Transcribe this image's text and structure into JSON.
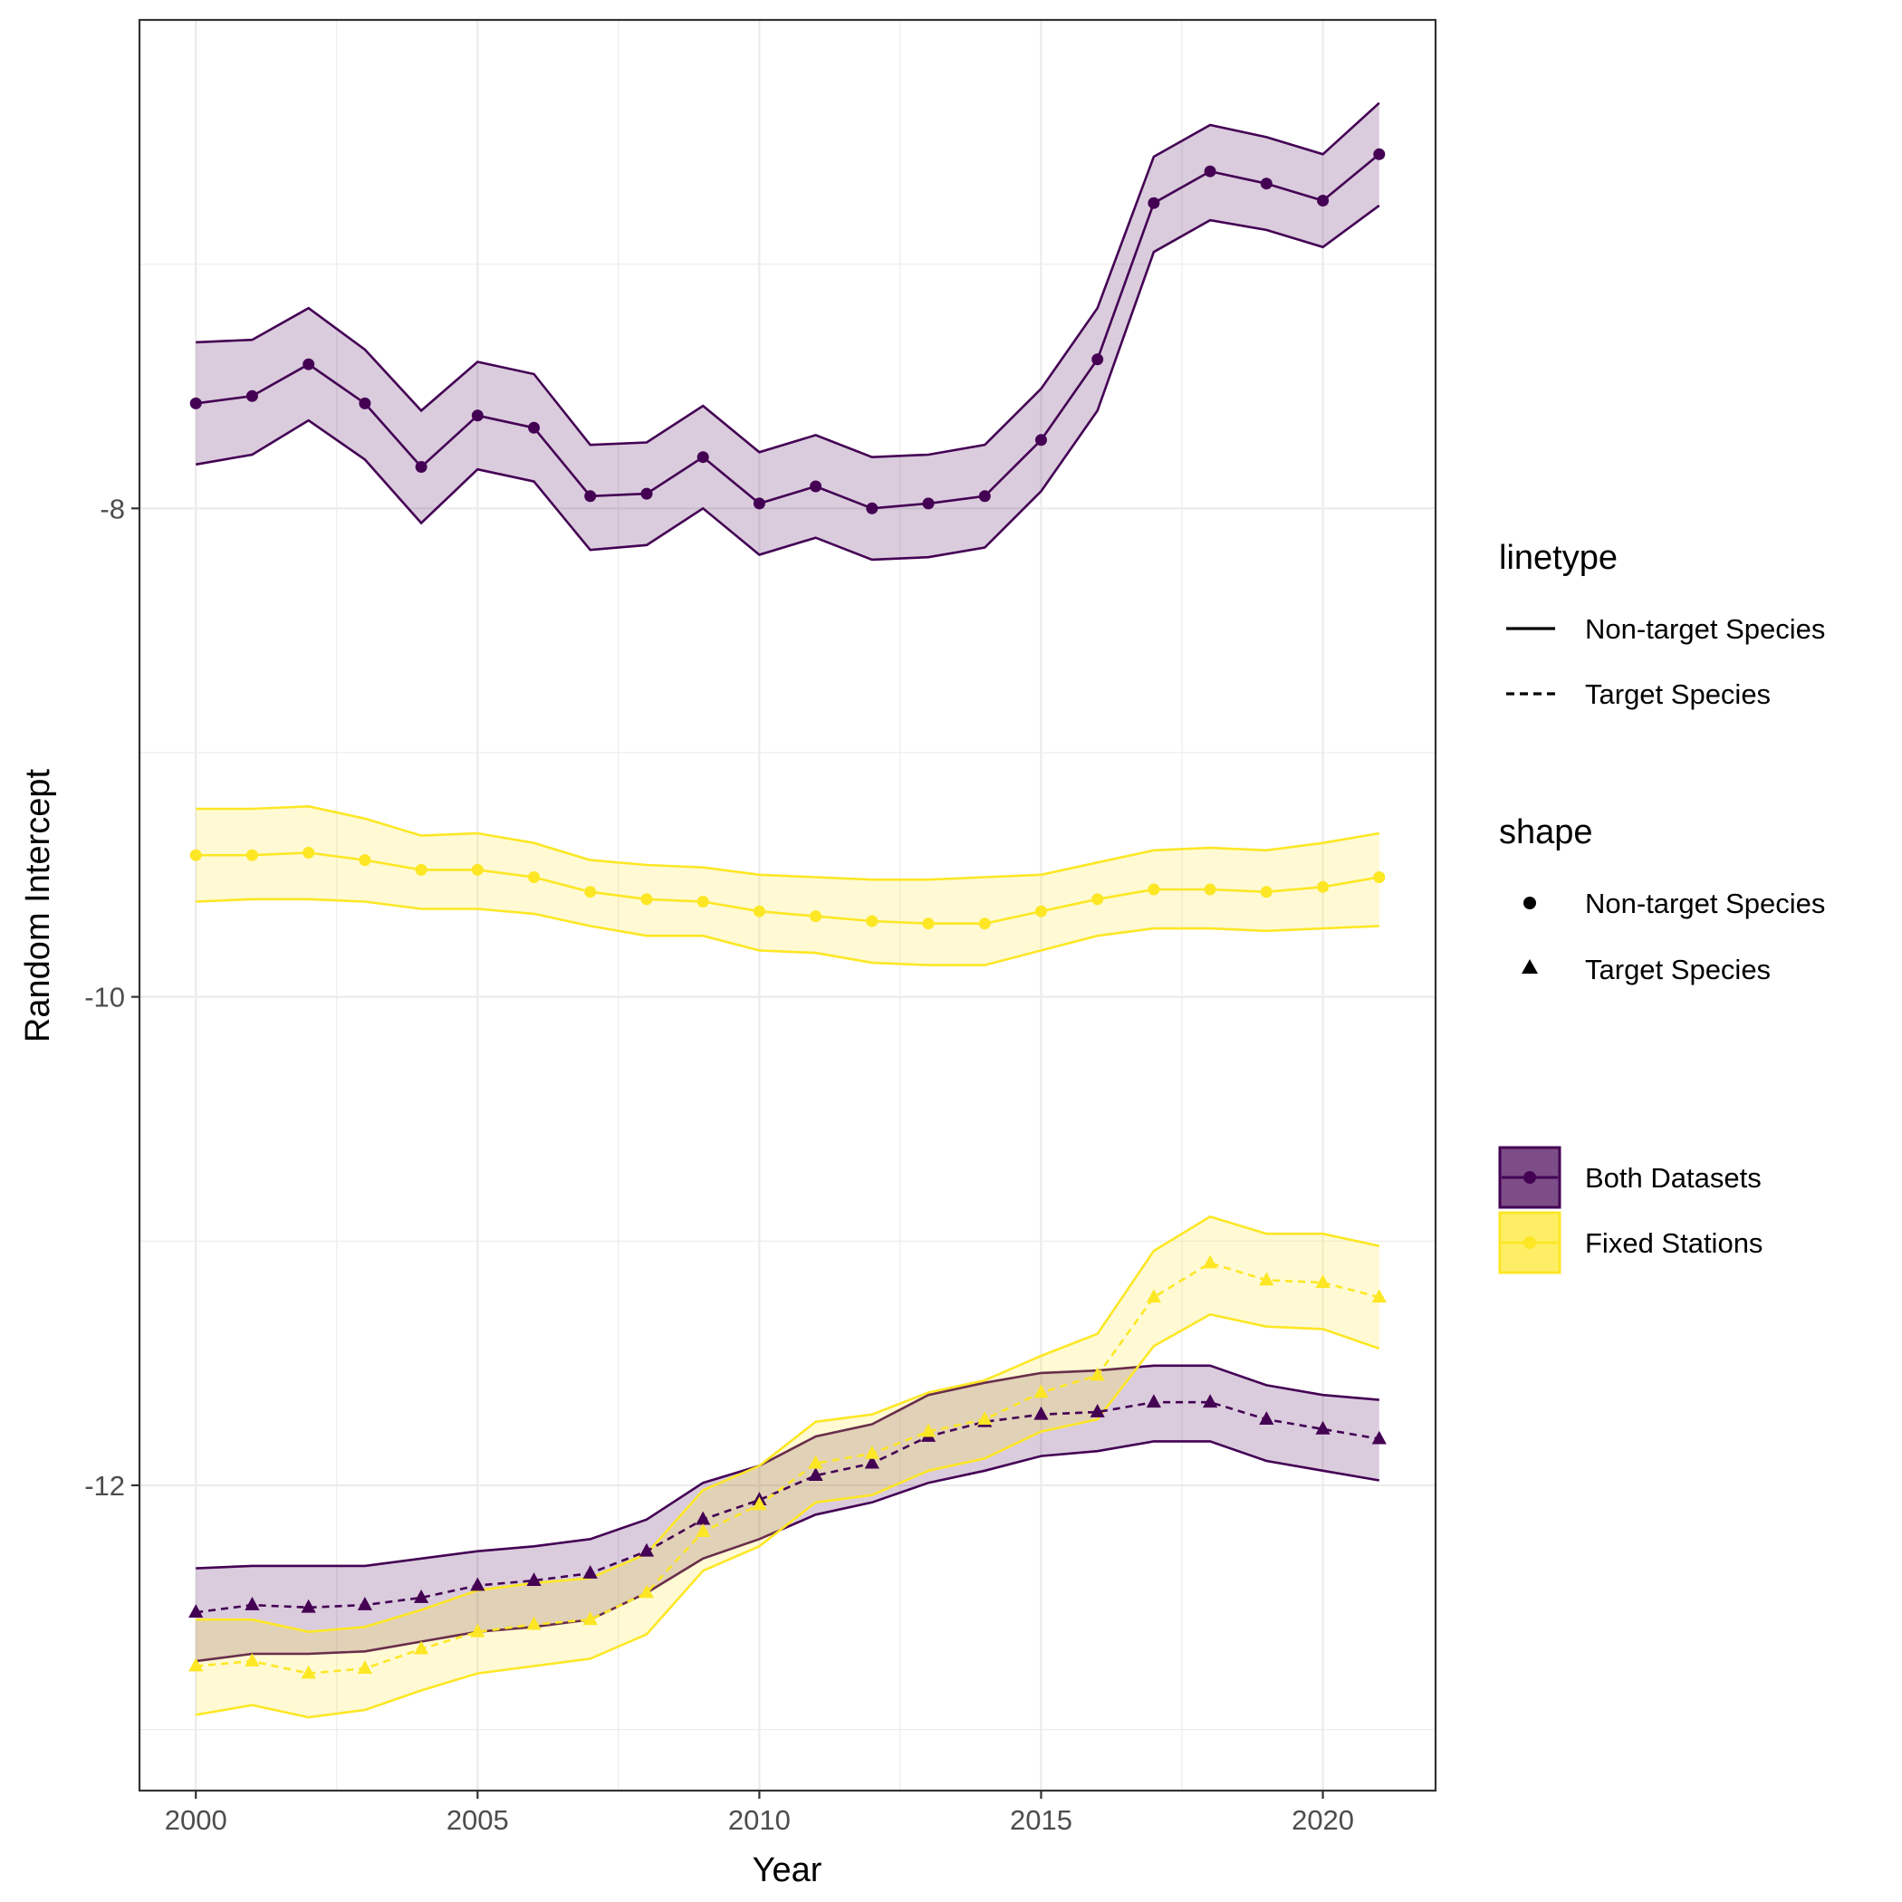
{
  "chart_data": {
    "type": "line",
    "xlabel": "Year",
    "ylabel": "Random Intercept",
    "xlim": [
      1999.0,
      2022.0
    ],
    "ylim": [
      -13.25,
      -6.0
    ],
    "x_ticks": [
      2000,
      2005,
      2010,
      2015,
      2020
    ],
    "y_ticks": [
      -8,
      -10,
      -12
    ],
    "x_tick_labels": [
      "2000",
      "2005",
      "2010",
      "2015",
      "2020"
    ],
    "y_tick_labels": [
      "-8",
      "-10",
      "-12"
    ],
    "x": [
      2000,
      2001,
      2002,
      2003,
      2004,
      2005,
      2006,
      2007,
      2008,
      2009,
      2010,
      2011,
      2012,
      2013,
      2014,
      2015,
      2016,
      2017,
      2018,
      2019,
      2020,
      2021
    ],
    "grid": true,
    "colors": {
      "both": "#440154",
      "fixed": "#FDE725"
    },
    "series": [
      {
        "dataset": "Both Datasets",
        "species": "Non-target Species",
        "color": "#440154",
        "linetype": "solid",
        "shape": "circle",
        "values": [
          -7.57,
          -7.54,
          -7.41,
          -7.57,
          -7.83,
          -7.62,
          -7.67,
          -7.95,
          -7.94,
          -7.79,
          -7.98,
          -7.91,
          -8.0,
          -7.98,
          -7.95,
          -7.72,
          -7.39,
          -6.75,
          -6.62,
          -6.67,
          -6.74,
          -6.55
        ],
        "lower": [
          -7.82,
          -7.78,
          -7.64,
          -7.8,
          -8.06,
          -7.84,
          -7.89,
          -8.17,
          -8.15,
          -8.0,
          -8.19,
          -8.12,
          -8.21,
          -8.2,
          -8.16,
          -7.93,
          -7.6,
          -6.95,
          -6.82,
          -6.86,
          -6.93,
          -6.76
        ],
        "upper": [
          -7.32,
          -7.31,
          -7.18,
          -7.35,
          -7.6,
          -7.4,
          -7.45,
          -7.74,
          -7.73,
          -7.58,
          -7.77,
          -7.7,
          -7.79,
          -7.78,
          -7.74,
          -7.51,
          -7.18,
          -6.56,
          -6.43,
          -6.48,
          -6.55,
          -6.34
        ]
      },
      {
        "dataset": "Fixed Stations",
        "species": "Non-target Species",
        "color": "#FDE725",
        "linetype": "solid",
        "shape": "circle",
        "values": [
          -9.42,
          -9.42,
          -9.41,
          -9.44,
          -9.48,
          -9.48,
          -9.51,
          -9.57,
          -9.6,
          -9.61,
          -9.65,
          -9.67,
          -9.69,
          -9.7,
          -9.7,
          -9.65,
          -9.6,
          -9.56,
          -9.56,
          -9.57,
          -9.55,
          -9.51
        ],
        "lower": [
          -9.61,
          -9.6,
          -9.6,
          -9.61,
          -9.64,
          -9.64,
          -9.66,
          -9.71,
          -9.75,
          -9.75,
          -9.81,
          -9.82,
          -9.86,
          -9.87,
          -9.87,
          -9.81,
          -9.75,
          -9.72,
          -9.72,
          -9.73,
          -9.72,
          -9.71
        ],
        "upper": [
          -9.23,
          -9.23,
          -9.22,
          -9.27,
          -9.34,
          -9.33,
          -9.37,
          -9.44,
          -9.46,
          -9.47,
          -9.5,
          -9.51,
          -9.52,
          -9.52,
          -9.51,
          -9.5,
          -9.45,
          -9.4,
          -9.39,
          -9.4,
          -9.37,
          -9.33
        ]
      },
      {
        "dataset": "Both Datasets",
        "species": "Target Species",
        "color": "#440154",
        "linetype": "dashed",
        "shape": "triangle",
        "values": [
          -12.52,
          -12.49,
          -12.5,
          -12.49,
          -12.46,
          -12.41,
          -12.39,
          -12.36,
          -12.27,
          -12.14,
          -12.06,
          -11.96,
          -11.91,
          -11.8,
          -11.74,
          -11.71,
          -11.7,
          -11.66,
          -11.66,
          -11.73,
          -11.77,
          -11.81
        ],
        "lower": [
          -12.72,
          -12.69,
          -12.69,
          -12.68,
          -12.64,
          -12.6,
          -12.58,
          -12.55,
          -12.44,
          -12.3,
          -12.22,
          -12.12,
          -12.07,
          -11.99,
          -11.94,
          -11.88,
          -11.86,
          -11.82,
          -11.82,
          -11.9,
          -11.94,
          -11.98
        ],
        "upper": [
          -12.34,
          -12.33,
          -12.33,
          -12.33,
          -12.3,
          -12.27,
          -12.25,
          -12.22,
          -12.14,
          -11.99,
          -11.92,
          -11.8,
          -11.75,
          -11.63,
          -11.58,
          -11.54,
          -11.53,
          -11.51,
          -11.51,
          -11.59,
          -11.63,
          -11.65
        ]
      },
      {
        "dataset": "Fixed Stations",
        "species": "Target Species",
        "color": "#FDE725",
        "linetype": "dashed",
        "shape": "triangle",
        "values": [
          -12.74,
          -12.72,
          -12.77,
          -12.75,
          -12.67,
          -12.6,
          -12.57,
          -12.55,
          -12.44,
          -12.19,
          -12.08,
          -11.91,
          -11.87,
          -11.78,
          -11.73,
          -11.62,
          -11.55,
          -11.23,
          -11.09,
          -11.16,
          -11.17,
          -11.23
        ],
        "lower": [
          -12.94,
          -12.9,
          -12.95,
          -12.92,
          -12.84,
          -12.77,
          -12.74,
          -12.71,
          -12.61,
          -12.35,
          -12.25,
          -12.07,
          -12.04,
          -11.94,
          -11.89,
          -11.78,
          -11.73,
          -11.43,
          -11.3,
          -11.35,
          -11.36,
          -11.44
        ],
        "upper": [
          -12.55,
          -12.55,
          -12.6,
          -12.58,
          -12.51,
          -12.43,
          -12.4,
          -12.38,
          -12.28,
          -12.02,
          -11.92,
          -11.74,
          -11.71,
          -11.62,
          -11.57,
          -11.47,
          -11.38,
          -11.04,
          -10.9,
          -10.97,
          -10.97,
          -11.02
        ]
      }
    ],
    "legend": {
      "placement": "right",
      "linetype": {
        "title": "linetype",
        "items": [
          {
            "label": "Non-target Species",
            "style": "solid"
          },
          {
            "label": "Target Species",
            "style": "dashed"
          }
        ]
      },
      "shape": {
        "title": "shape",
        "items": [
          {
            "label": "Non-target Species",
            "glyph": "circle"
          },
          {
            "label": "Target Species",
            "glyph": "triangle"
          }
        ]
      },
      "colour": {
        "items": [
          {
            "label": "Both Datasets",
            "color": "#440154"
          },
          {
            "label": "Fixed Stations",
            "color": "#FDE725"
          }
        ]
      }
    }
  }
}
